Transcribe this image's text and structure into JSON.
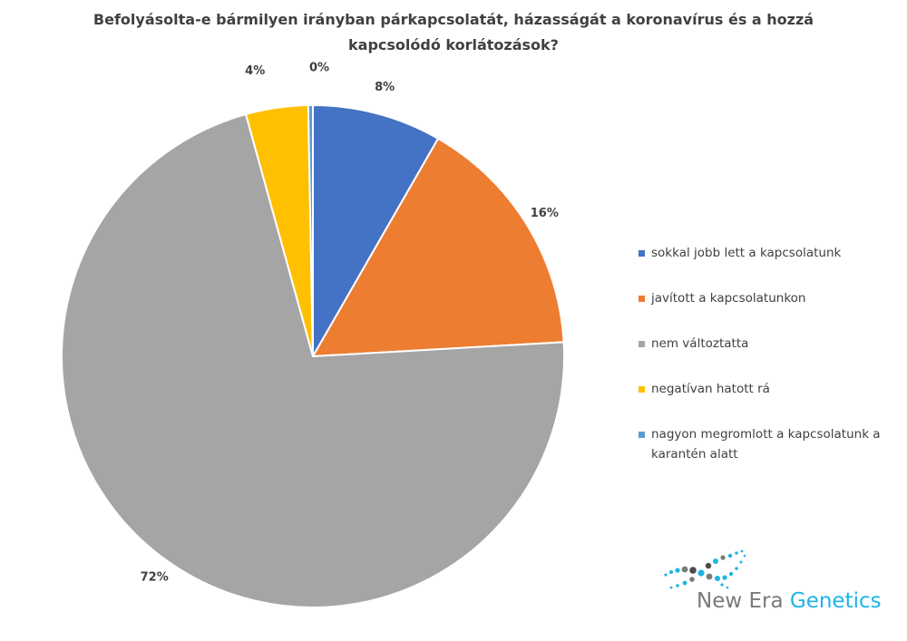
{
  "chart_data": {
    "type": "pie",
    "title": "Befolyásolta-e bármilyen irányban párkapcsolatát, házasságát a koronavírus és a hozzá kapcsolódó korlátozások?",
    "categories": [
      "sokkal jobb lett a kapcsolatunk",
      "javított a kapcsolatunkon",
      "nem változtatta",
      "negatívan hatott rá",
      "nagyon megromlott a kapcsolatunk a karantén alatt"
    ],
    "values": [
      8.3,
      15.8,
      71.6,
      4.0,
      0.3
    ],
    "data_labels": [
      "8%",
      "16%",
      "72%",
      "4%",
      "0%"
    ],
    "colors": [
      "#4472c4",
      "#ed7d31",
      "#a5a5a5",
      "#ffc000",
      "#5b9bd5"
    ],
    "legend_position": "right"
  },
  "logo": {
    "word1": "New Era",
    "word2": "Genetics"
  }
}
